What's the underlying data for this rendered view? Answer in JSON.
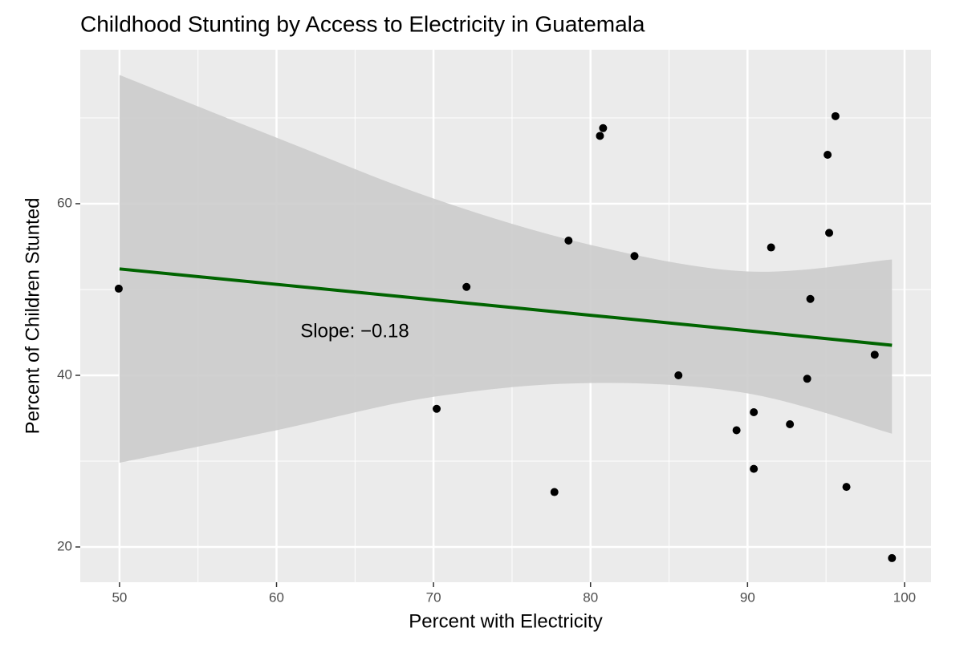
{
  "chart_data": {
    "type": "scatter",
    "title": "Childhood Stunting by Access to Electricity in Guatemala",
    "x_label": "Percent with Electricity",
    "y_label": "Percent of Children Stunted",
    "annotation": "Slope: −0.18",
    "x": [
      49.95,
      70.2,
      72.1,
      77.7,
      78.6,
      80.6,
      80.8,
      82.8,
      85.6,
      89.3,
      90.4,
      90.4,
      91.5,
      92.7,
      93.8,
      94.0,
      95.1,
      95.2,
      95.6,
      96.3,
      98.1,
      99.2
    ],
    "y": [
      50.1,
      36.1,
      50.3,
      26.4,
      55.7,
      67.9,
      68.8,
      53.9,
      40.0,
      33.6,
      35.7,
      29.1,
      54.9,
      34.3,
      39.6,
      48.9,
      65.7,
      56.6,
      70.2,
      27.0,
      42.4,
      18.7
    ],
    "point_color": "#000000",
    "fit": {
      "color": "#006400",
      "band_color": "#cccccc",
      "x": [
        50,
        60,
        70,
        80,
        90,
        99.2
      ],
      "y": [
        52.4,
        50.6,
        48.8,
        47.0,
        45.2,
        43.5
      ],
      "ymin": [
        29.8,
        33.6,
        37.5,
        39.1,
        37.9,
        33.2
      ],
      "ymax": [
        75.0,
        67.7,
        60.6,
        55.2,
        52.1,
        53.5
      ]
    },
    "xlim": [
      47.5,
      101.69
    ],
    "ylim": [
      15.89,
      77.94
    ],
    "xticks": [
      50,
      60,
      70,
      80,
      90,
      100
    ],
    "yticks": [
      20,
      40,
      60
    ],
    "grid": true
  }
}
